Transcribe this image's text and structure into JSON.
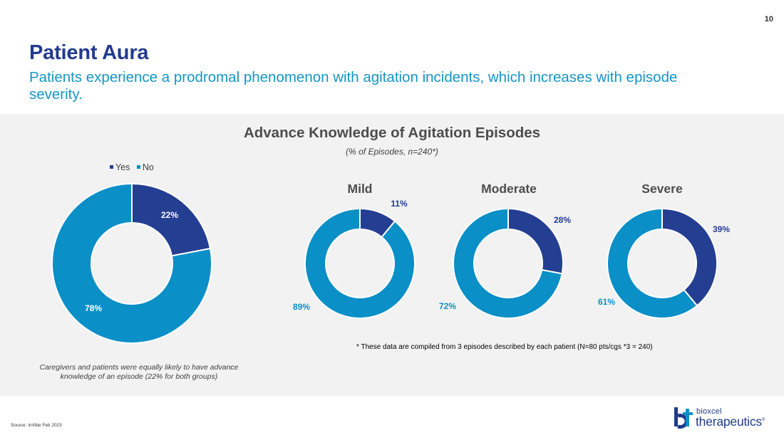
{
  "page": {
    "number": "10",
    "title": "Patient Aura",
    "subtitle": "Patients experience a prodromal phenomenon with agitation incidents, which increases with episode severity.",
    "source": "Source: InVibe Feb 2023"
  },
  "colors": {
    "yes": "#243e91",
    "no": "#0a8fc7",
    "title": "#233a8f",
    "subtitle": "#1595c7",
    "panel": "#f2f2f2"
  },
  "legend": {
    "yes_label": "Yes",
    "no_label": "No"
  },
  "chart_data": [
    {
      "type": "pie",
      "variant": "donut",
      "name": "Overall",
      "title": "Advance Knowledge of Agitation Episodes",
      "subtitle": "(% of Episodes, n=240*)",
      "categories": [
        "Yes",
        "No"
      ],
      "values": [
        22,
        78
      ],
      "labels": [
        "22%",
        "78%"
      ]
    },
    {
      "type": "pie",
      "variant": "donut",
      "name": "Mild",
      "categories": [
        "Yes",
        "No"
      ],
      "values": [
        11,
        89
      ],
      "labels": [
        "11%",
        "89%"
      ]
    },
    {
      "type": "pie",
      "variant": "donut",
      "name": "Moderate",
      "categories": [
        "Yes",
        "No"
      ],
      "values": [
        28,
        72
      ],
      "labels": [
        "28%",
        "72%"
      ]
    },
    {
      "type": "pie",
      "variant": "donut",
      "name": "Severe",
      "categories": [
        "Yes",
        "No"
      ],
      "values": [
        39,
        61
      ],
      "labels": [
        "39%",
        "61%"
      ]
    }
  ],
  "notes": {
    "left": "Caregivers and patients were equally likely to have advance knowledge of an episode (22% for both groups)",
    "footnote": "* These data are compiled from 3 episodes described by each patient (N=80 pts/cgs *3 = 240)"
  },
  "logo": {
    "small": "bioxcel",
    "big": "therapeutics",
    "mark": "®"
  }
}
